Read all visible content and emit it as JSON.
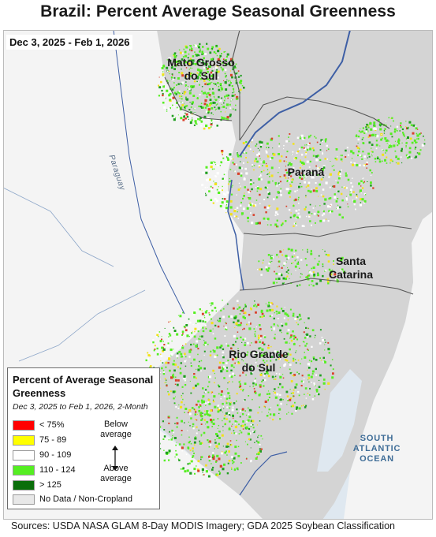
{
  "title": "Brazil: Percent Average Seasonal Greenness",
  "date_range": "Dec 3, 2025 - Feb 1, 2026",
  "labels": {
    "mato_grosso_do_sul": [
      "Mato Grosso",
      "do Sul"
    ],
    "parana": "Paraná",
    "santa_catarina": [
      "Santa",
      "Catarina"
    ],
    "rio_grande_do_sul": [
      "Rio Grande",
      "do Sul"
    ],
    "paraguay_river": "Paraguay",
    "ocean": [
      "SOUTH",
      "ATLANTIC",
      "OCEAN"
    ]
  },
  "legend": {
    "title": "Percent of Average Seasonal Greenness",
    "subtitle": "Dec 3, 2025 to Feb 1, 2026, 2-Month",
    "items": [
      {
        "label": "< 75%",
        "color": "#ff0000"
      },
      {
        "label": "75 - 89",
        "color": "#ffff00"
      },
      {
        "label": "90 - 109",
        "color": "#ffffff"
      },
      {
        "label": "110 - 124",
        "color": "#55ee22"
      },
      {
        "label": "> 125",
        "color": "#0a6e0a"
      },
      {
        "label": "No Data / Non-Cropland",
        "color": "#e8e8e8"
      }
    ],
    "below": [
      "Below",
      "average"
    ],
    "above": [
      "Above",
      "average"
    ]
  },
  "colors": {
    "water": "#dfe8f0",
    "land_outside": "#f4f4f4",
    "land_inside": "#d4d4d4",
    "river": "#3e5fa5",
    "border": "#555555"
  },
  "sources": "Sources: USDA NASA GLAM 8-Day MODIS Imagery; GDA 2025 Soybean Classification"
}
